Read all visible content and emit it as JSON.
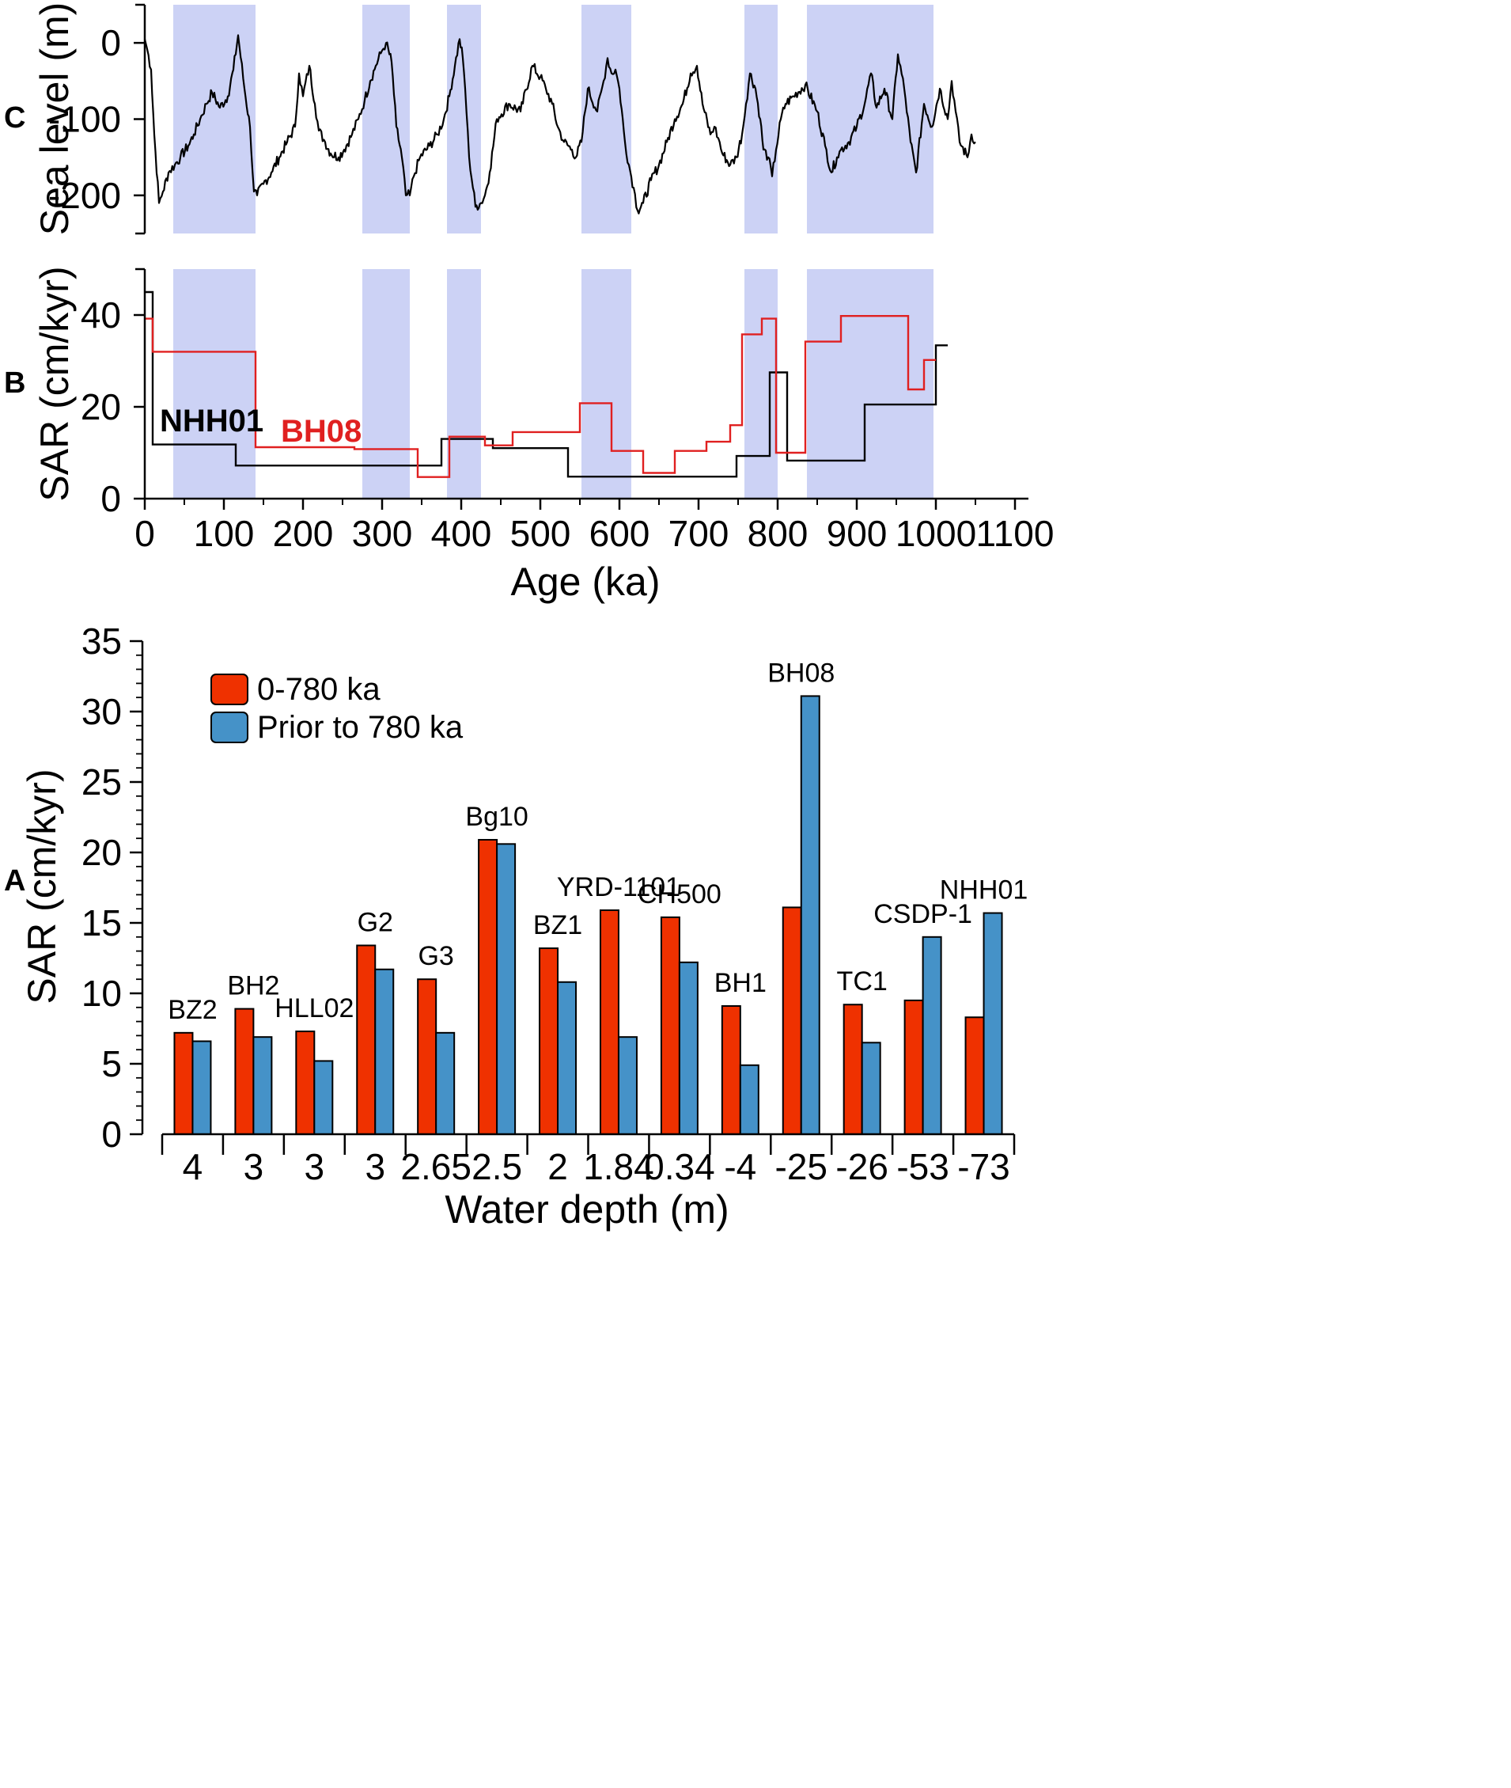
{
  "figure": {
    "colors": {
      "shade": "#ccd2f5",
      "bh08": "#e02020",
      "nhh01": "#000000",
      "bar_recent": "#ef3100",
      "bar_prior": "#4592c8"
    }
  },
  "chart_data": [
    {
      "id": "C",
      "panel_label": "C",
      "type": "line",
      "ylabel": "Sea level (m)",
      "xlim": [
        0,
        1100
      ],
      "ylim": [
        -250,
        50
      ],
      "yticks": [
        0,
        -100,
        -200
      ],
      "ytick_labels": [
        "0",
        "-100",
        "-200"
      ],
      "shaded_intervals_ka": [
        [
          36,
          140
        ],
        [
          275,
          335
        ],
        [
          382,
          425
        ],
        [
          552,
          615
        ],
        [
          758,
          800
        ],
        [
          837,
          997
        ]
      ],
      "series": [
        {
          "name": "Sea level",
          "color": "#000000",
          "x": [
            0,
            3,
            8,
            12,
            18,
            23,
            30,
            38,
            45,
            55,
            62,
            70,
            78,
            85,
            95,
            105,
            112,
            118,
            126,
            133,
            138,
            142,
            150,
            160,
            170,
            180,
            190,
            195,
            200,
            208,
            215,
            220,
            228,
            235,
            245,
            252,
            262,
            270,
            278,
            285,
            292,
            300,
            305,
            312,
            318,
            325,
            330,
            335,
            340,
            348,
            360,
            370,
            378,
            385,
            392,
            398,
            402,
            405,
            410,
            418,
            425,
            430,
            436,
            445,
            460,
            475,
            490,
            500,
            507,
            515,
            522,
            530,
            540,
            545,
            552,
            560,
            572,
            580,
            585,
            590,
            595,
            600,
            607,
            612,
            618,
            623,
            630,
            640,
            650,
            660,
            670,
            680,
            690,
            698,
            705,
            715,
            720,
            725,
            730,
            740,
            748,
            755,
            760,
            765,
            772,
            778,
            782,
            788,
            793,
            798,
            804,
            810,
            820,
            835,
            850,
            860,
            868,
            875,
            880,
            890,
            900,
            910,
            918,
            925,
            935,
            945,
            952,
            960,
            968,
            975,
            985,
            995,
            1005,
            1015,
            1020,
            1025,
            1030,
            1040,
            1045,
            1050
          ],
          "y": [
            5,
            -8,
            -35,
            -120,
            -210,
            -195,
            -170,
            -160,
            -150,
            -135,
            -120,
            -100,
            -80,
            -65,
            -85,
            -70,
            -35,
            10,
            -60,
            -110,
            -195,
            -200,
            -185,
            -170,
            -150,
            -130,
            -110,
            -40,
            -70,
            -30,
            -80,
            -115,
            -130,
            -145,
            -150,
            -140,
            -120,
            -100,
            -75,
            -50,
            -30,
            -10,
            0,
            -25,
            -110,
            -150,
            -200,
            -200,
            -175,
            -150,
            -135,
            -120,
            -100,
            -70,
            -30,
            5,
            -20,
            -60,
            -150,
            -215,
            -210,
            -200,
            -170,
            -100,
            -80,
            -90,
            -30,
            -45,
            -60,
            -80,
            -110,
            -130,
            -140,
            -150,
            -130,
            -60,
            -90,
            -50,
            -20,
            -40,
            -35,
            -60,
            -130,
            -160,
            -190,
            -220,
            -210,
            -180,
            -160,
            -130,
            -100,
            -80,
            -40,
            -30,
            -80,
            -120,
            -110,
            -125,
            -145,
            -160,
            -150,
            -120,
            -80,
            -40,
            -60,
            -100,
            -140,
            -150,
            -175,
            -140,
            -100,
            -80,
            -70,
            -55,
            -90,
            -135,
            -170,
            -150,
            -140,
            -130,
            -110,
            -80,
            -40,
            -85,
            -60,
            -100,
            -15,
            -60,
            -130,
            -170,
            -80,
            -110,
            -60,
            -100,
            -50,
            -90,
            -130,
            -150,
            -120,
            -130
          ],
          "noise_seed": 7
        }
      ]
    },
    {
      "id": "B",
      "panel_label": "B",
      "type": "line",
      "step": true,
      "ylabel": "SAR (cm/kyr)",
      "xlabel": "Age (ka)",
      "xlim": [
        0,
        1100
      ],
      "ylim": [
        0,
        50
      ],
      "xticks": [
        0,
        100,
        200,
        300,
        400,
        500,
        600,
        700,
        800,
        900,
        1000,
        1100
      ],
      "xtick_labels": [
        "0",
        "100",
        "200",
        "300",
        "400",
        "500",
        "600",
        "700",
        "800",
        "900",
        "1000",
        "1100"
      ],
      "yticks": [
        0,
        20,
        40
      ],
      "ytick_labels": [
        "0",
        "20",
        "40"
      ],
      "series": [
        {
          "name": "NHH01",
          "label": "NHH01",
          "color": "#000000",
          "x": [
            0,
            10,
            115,
            375,
            385,
            440,
            535,
            748,
            790,
            812,
            910,
            1000,
            1015
          ],
          "y": [
            45,
            11.8,
            7.2,
            13,
            13,
            11,
            4.8,
            9.3,
            27.5,
            8.3,
            20.5,
            33.4,
            33.4
          ]
        },
        {
          "name": "BH08",
          "label": "BH08",
          "color": "#e02020",
          "x": [
            0,
            10,
            140,
            265,
            345,
            385,
            430,
            465,
            550,
            590,
            630,
            670,
            710,
            740,
            755,
            780,
            798,
            835,
            880,
            965,
            985,
            1000
          ],
          "y": [
            39.2,
            32,
            11.2,
            10.8,
            4.7,
            13.5,
            11.6,
            14.5,
            20.8,
            10.4,
            5.6,
            10.4,
            12.4,
            16,
            35.8,
            39.2,
            10,
            34.2,
            39.8,
            23.8,
            30.2,
            30.2
          ]
        }
      ]
    },
    {
      "id": "A",
      "panel_label": "A",
      "type": "bar",
      "ylabel": "SAR (cm/kyr)",
      "xlabel": "Water depth (m)",
      "ylim": [
        0,
        35
      ],
      "yticks": [
        0,
        5,
        10,
        15,
        20,
        25,
        30,
        35
      ],
      "ytick_labels": [
        "0",
        "5",
        "10",
        "15",
        "20",
        "25",
        "30",
        "35"
      ],
      "categories": [
        "4",
        "3",
        "3",
        "3",
        "2.65",
        "2.5",
        "2",
        "1.84",
        "0.34",
        "-4",
        "-25",
        "-26",
        "-53",
        "-73"
      ],
      "site_labels": [
        "BZ2",
        "BH2",
        "HLL02",
        "G2",
        "G3",
        "Bg10",
        "BZ1",
        "YRD-1101",
        "CH500",
        "BH1",
        "BH08",
        "TC1",
        "CSDP-1",
        "NHH01"
      ],
      "legend": [
        "0-780 ka",
        "Prior to 780 ka"
      ],
      "series": [
        {
          "name": "0-780 ka",
          "color": "#ef3100",
          "values": [
            7.2,
            8.9,
            7.3,
            13.4,
            11.0,
            20.9,
            13.2,
            15.9,
            15.4,
            9.1,
            16.1,
            9.2,
            9.5,
            8.3
          ]
        },
        {
          "name": "Prior to 780 ka",
          "color": "#4592c8",
          "values": [
            6.6,
            6.9,
            5.2,
            11.7,
            7.2,
            20.6,
            10.8,
            6.9,
            12.2,
            4.9,
            31.1,
            6.5,
            14.0,
            15.7
          ]
        }
      ]
    }
  ]
}
